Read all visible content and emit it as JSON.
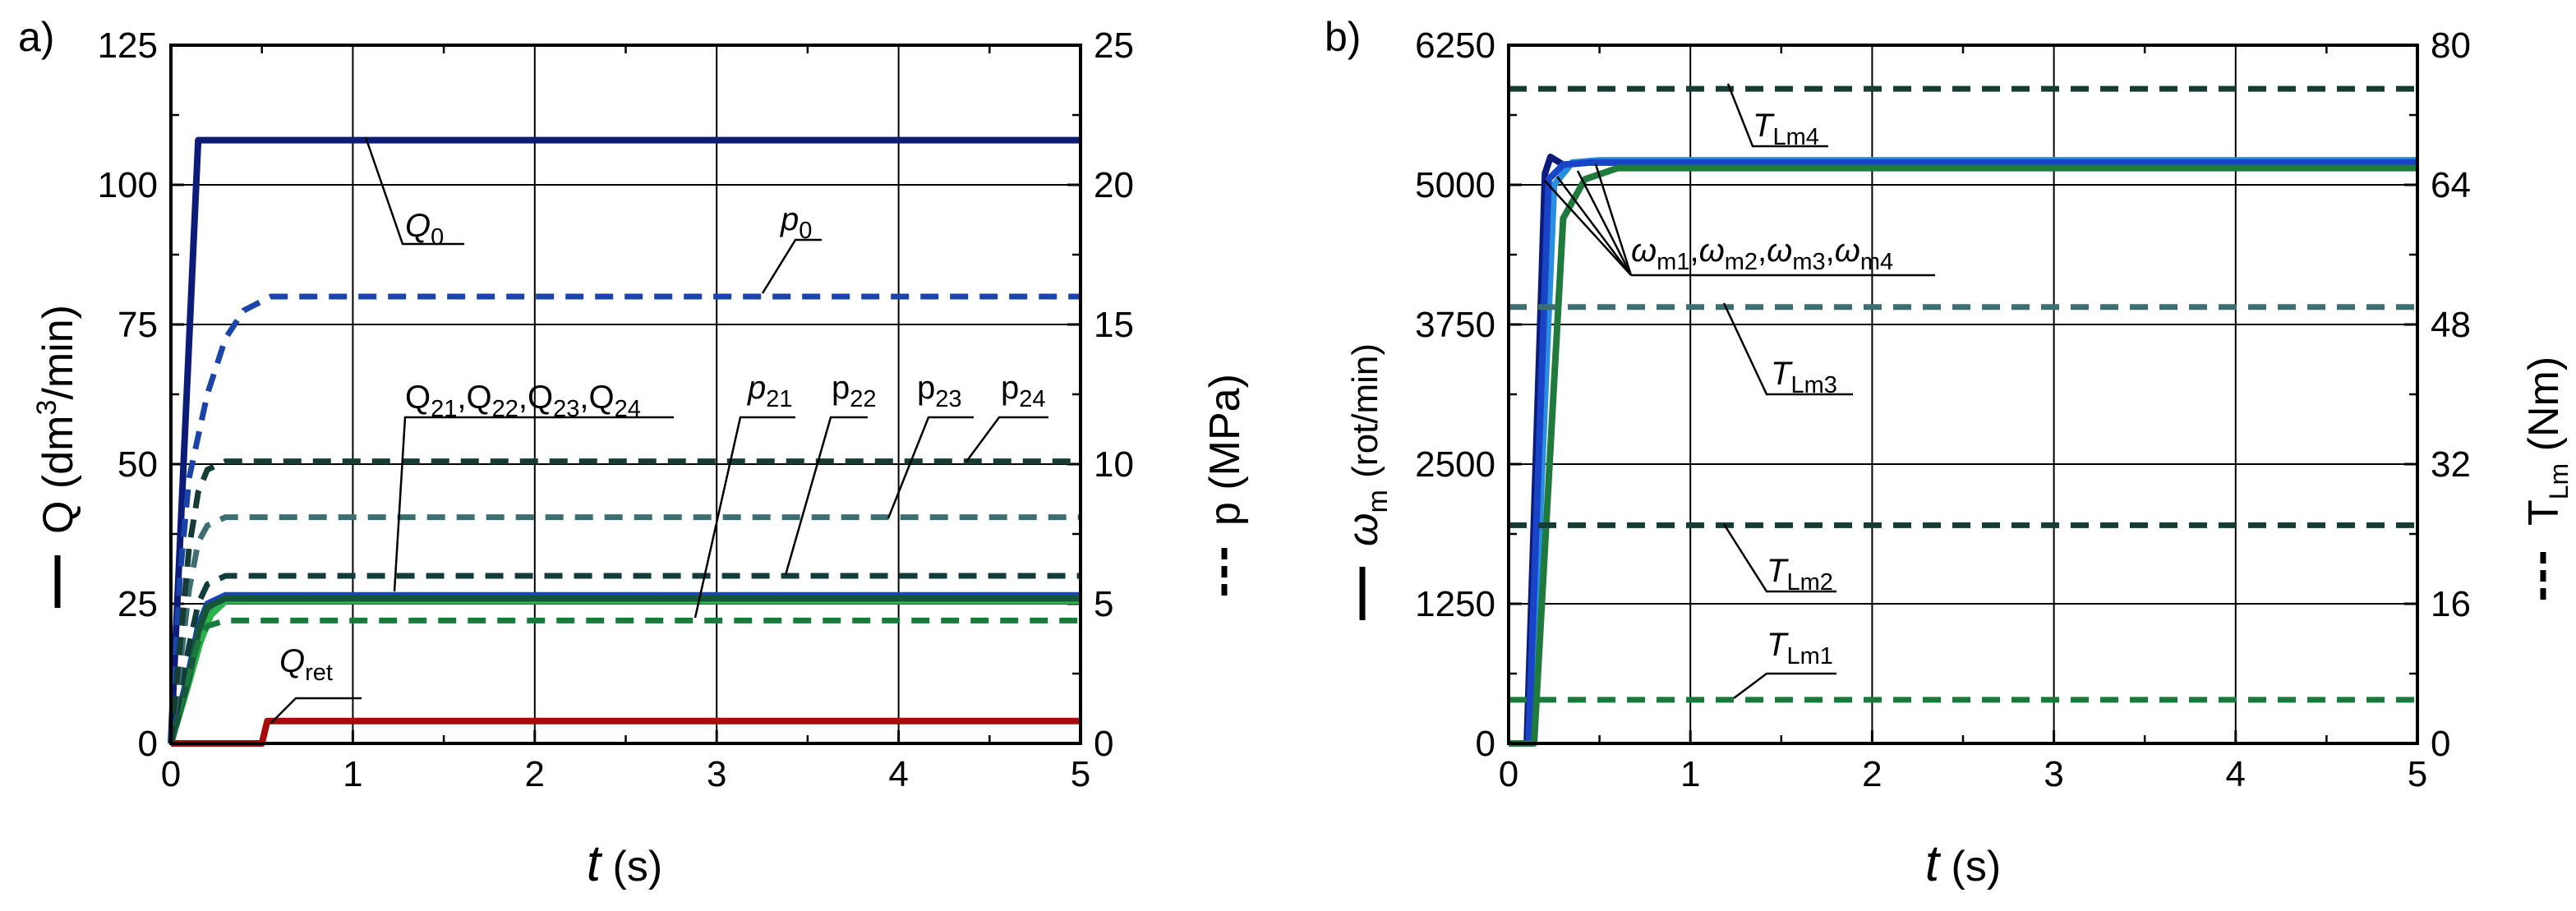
{
  "chart_data": [
    {
      "type": "line",
      "panel_label": "a)",
      "xlabel": {
        "var": "t",
        "unit": "(s)"
      },
      "ylabel_left": {
        "var": "Q",
        "unit_pre": "(dm",
        "unit_sup": "3",
        "unit_post": "/min)"
      },
      "ylabel_right": "p (MPa)",
      "xlim": [
        0,
        5
      ],
      "ylim_left": [
        0,
        125
      ],
      "ylim_right": [
        0,
        25
      ],
      "x_ticks": [
        "0",
        "1",
        "2",
        "3",
        "4",
        "5"
      ],
      "y_ticks_left": [
        "0",
        "25",
        "50",
        "75",
        "100",
        "125"
      ],
      "y_ticks_right": [
        "0",
        "5",
        "10",
        "15",
        "20",
        "25"
      ],
      "grid": true,
      "series": [
        {
          "name": "Q0",
          "axis": "left",
          "style": "solid",
          "color": "#0d1c78",
          "x": [
            0,
            0.15,
            5
          ],
          "y": [
            0,
            108,
            108
          ]
        },
        {
          "name": "Q21",
          "axis": "left",
          "style": "solid",
          "color": "#1a7a3c",
          "x": [
            0,
            0.1,
            0.15,
            0.2,
            0.3,
            5
          ],
          "y": [
            0,
            12,
            20,
            24,
            26,
            26
          ]
        },
        {
          "name": "Q22",
          "axis": "left",
          "style": "solid",
          "color": "#2bb24a",
          "x": [
            0,
            0.1,
            0.16,
            0.22,
            0.3,
            5
          ],
          "y": [
            0,
            11,
            18,
            23,
            25.5,
            25.5
          ]
        },
        {
          "name": "Q23",
          "axis": "left",
          "style": "solid",
          "color": "#1a44c8",
          "x": [
            0,
            0.1,
            0.15,
            0.2,
            0.3,
            5
          ],
          "y": [
            0,
            13,
            21,
            25,
            26.5,
            26.5
          ]
        },
        {
          "name": "Q24",
          "axis": "left",
          "style": "solid",
          "color": "#16553a",
          "x": [
            0,
            0.1,
            0.15,
            0.2,
            0.3,
            5
          ],
          "y": [
            0,
            12,
            20,
            24.5,
            26,
            26
          ]
        },
        {
          "name": "Qret",
          "axis": "left",
          "style": "solid",
          "color": "#a80b0b",
          "x": [
            0,
            0.5,
            0.53,
            5
          ],
          "y": [
            0,
            0,
            4,
            4
          ]
        },
        {
          "name": "p0",
          "axis": "right",
          "style": "dashed",
          "color": "#1a44a8",
          "x": [
            0,
            0.05,
            0.1,
            0.2,
            0.3,
            0.4,
            0.55,
            5
          ],
          "y": [
            0,
            6,
            9.5,
            12.5,
            14.5,
            15.5,
            16,
            16
          ]
        },
        {
          "name": "p21",
          "axis": "right",
          "style": "dashed",
          "color": "#1a7a3c",
          "x": [
            0,
            0.1,
            0.15,
            0.2,
            0.3,
            5
          ],
          "y": [
            0,
            2.5,
            3.6,
            4.2,
            4.4,
            4.4
          ]
        },
        {
          "name": "p22",
          "axis": "right",
          "style": "dashed",
          "color": "#123c3c",
          "x": [
            0,
            0.1,
            0.15,
            0.2,
            0.3,
            5
          ],
          "y": [
            0,
            3.5,
            5,
            5.7,
            6,
            6
          ]
        },
        {
          "name": "p23",
          "axis": "right",
          "style": "dashed",
          "color": "#3d6e72",
          "x": [
            0,
            0.1,
            0.15,
            0.2,
            0.3,
            5
          ],
          "y": [
            0,
            5.5,
            7.2,
            7.8,
            8.1,
            8.1
          ]
        },
        {
          "name": "p24",
          "axis": "right",
          "style": "dashed",
          "color": "#163c33",
          "x": [
            0,
            0.1,
            0.15,
            0.2,
            0.3,
            5
          ],
          "y": [
            0,
            7,
            9,
            9.8,
            10.1,
            10.1
          ]
        }
      ],
      "annotations": [
        {
          "base": "Q",
          "sub": "0"
        },
        {
          "base": "p",
          "sub": "0"
        },
        {
          "parts": [
            {
              "b": "Q",
              "s": "21"
            },
            {
              "b": "Q",
              "s": "22"
            },
            {
              "b": "Q",
              "s": "23"
            },
            {
              "b": "Q",
              "s": "24"
            }
          ]
        },
        {
          "base": "p",
          "sub": "21"
        },
        {
          "base": "p",
          "sub": "22"
        },
        {
          "base": "p",
          "sub": "23"
        },
        {
          "base": "p",
          "sub": "24"
        },
        {
          "base": "Q",
          "sub": "ret"
        }
      ]
    },
    {
      "type": "line",
      "panel_label": "b)",
      "xlabel": {
        "var": "t",
        "unit": "(s)"
      },
      "ylabel_left": {
        "var": "ω",
        "var_sub": "m",
        "unit": "(rot/min)"
      },
      "ylabel_right": {
        "base": "T",
        "sub": "Lm",
        "unit": "(Nm)"
      },
      "xlim": [
        0,
        5
      ],
      "ylim_left": [
        0,
        6250
      ],
      "ylim_right": [
        0,
        80
      ],
      "x_ticks": [
        "0",
        "1",
        "2",
        "3",
        "4",
        "5"
      ],
      "y_ticks_left": [
        "0",
        "1250",
        "2500",
        "3750",
        "5000",
        "6250"
      ],
      "y_ticks_right": [
        "0",
        "16",
        "32",
        "48",
        "64",
        "80"
      ],
      "grid": true,
      "series": [
        {
          "name": "ωm1",
          "axis": "left",
          "style": "solid",
          "color": "#0d1c78",
          "x": [
            0,
            0.1,
            0.2,
            0.23,
            0.3,
            0.45,
            5
          ],
          "y": [
            0,
            0,
            5100,
            5250,
            5180,
            5200,
            5200
          ]
        },
        {
          "name": "ωm2",
          "axis": "left",
          "style": "solid",
          "color": "#2a8ee0",
          "x": [
            0,
            0.12,
            0.25,
            0.35,
            0.5,
            5
          ],
          "y": [
            0,
            0,
            5000,
            5200,
            5220,
            5220
          ]
        },
        {
          "name": "ωm3",
          "axis": "left",
          "style": "solid",
          "color": "#1a44c8",
          "x": [
            0,
            0.11,
            0.22,
            0.3,
            0.45,
            5
          ],
          "y": [
            0,
            0,
            5050,
            5180,
            5200,
            5200
          ]
        },
        {
          "name": "ωm4",
          "axis": "left",
          "style": "solid",
          "color": "#1f7a3c",
          "x": [
            0,
            0.14,
            0.3,
            0.42,
            0.6,
            5
          ],
          "y": [
            0,
            0,
            4700,
            5050,
            5150,
            5150
          ]
        },
        {
          "name": "TLm1",
          "axis": "right",
          "style": "dashed",
          "color": "#1a7a3c",
          "x": [
            0,
            5
          ],
          "y": [
            5,
            5
          ]
        },
        {
          "name": "TLm2",
          "axis": "right",
          "style": "dashed",
          "color": "#163c33",
          "x": [
            0,
            5
          ],
          "y": [
            25,
            25
          ]
        },
        {
          "name": "TLm3",
          "axis": "right",
          "style": "dashed",
          "color": "#3d6e72",
          "x": [
            0,
            5
          ],
          "y": [
            50,
            50
          ]
        },
        {
          "name": "TLm4",
          "axis": "right",
          "style": "dashed",
          "color": "#163c33",
          "x": [
            0,
            5
          ],
          "y": [
            75,
            75
          ]
        }
      ],
      "annotations": [
        {
          "base": "T",
          "sub": "Lm4"
        },
        {
          "parts": [
            {
              "b": "ω",
              "s": "m1"
            },
            {
              "b": "ω",
              "s": "m2"
            },
            {
              "b": "ω",
              "s": "m3"
            },
            {
              "b": "ω",
              "s": "m4"
            }
          ]
        },
        {
          "base": "T",
          "sub": "Lm3"
        },
        {
          "base": "T",
          "sub": "Lm2"
        },
        {
          "base": "T",
          "sub": "Lm1"
        }
      ]
    }
  ]
}
